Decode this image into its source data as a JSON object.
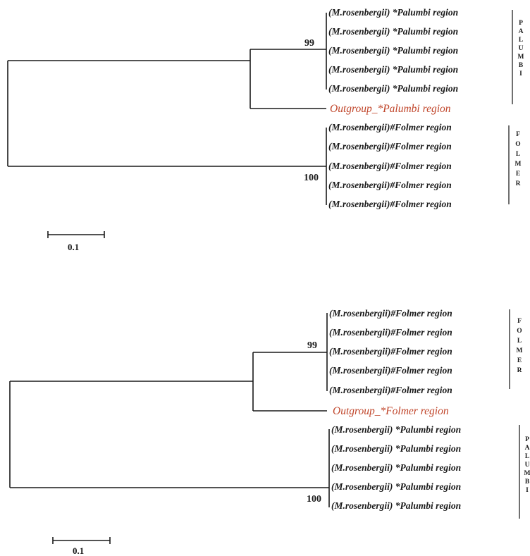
{
  "trees": [
    {
      "subclades": [
        {
          "support": "99",
          "leaves": [
            "(M.rosenbergii) *Palumbi region",
            "(M.rosenbergii) *Palumbi region",
            "(M.rosenbergii) *Palumbi region",
            "(M.rosenbergii) *Palumbi region",
            "(M.rosenbergii) *Palumbi region"
          ],
          "group_label": [
            "P",
            "A",
            "L",
            "U",
            "M",
            "B",
            "I"
          ]
        },
        {
          "support": "100",
          "leaves": [
            "(M.rosenbergii)#Folmer region",
            "(M.rosenbergii)#Folmer region",
            "(M.rosenbergii)#Folmer region",
            "(M.rosenbergii)#Folmer region",
            "(M.rosenbergii)#Folmer region"
          ],
          "group_label": [
            "F",
            "O",
            "L",
            "M",
            "E",
            "R"
          ]
        }
      ],
      "outgroup": "Outgroup_*Palumbi region",
      "scale_bar_label": "0.1",
      "colors": {
        "outgroup": "#c0452a",
        "lines": "#1a1a1a"
      }
    },
    {
      "subclades": [
        {
          "support": "99",
          "leaves": [
            "(M.rosenbergii)#Folmer region",
            "(M.rosenbergii)#Folmer region",
            "(M.rosenbergii)#Folmer region",
            "(M.rosenbergii)#Folmer region",
            "(M.rosenbergii)#Folmer region"
          ],
          "group_label": [
            "F",
            "O",
            "L",
            "M",
            "E",
            "R"
          ]
        },
        {
          "support": "100",
          "leaves": [
            "(M.rosenbergii) *Palumbi region",
            "(M.rosenbergii) *Palumbi region",
            "(M.rosenbergii) *Palumbi region",
            "(M.rosenbergii) *Palumbi region",
            "(M.rosenbergii) *Palumbi region"
          ],
          "group_label": [
            "P",
            "A",
            "L",
            "U",
            "M",
            "B",
            "I"
          ]
        }
      ],
      "outgroup": "Outgroup_*Folmer region",
      "scale_bar_label": "0.1",
      "colors": {
        "outgroup": "#c0452a",
        "lines": "#1a1a1a"
      }
    }
  ]
}
